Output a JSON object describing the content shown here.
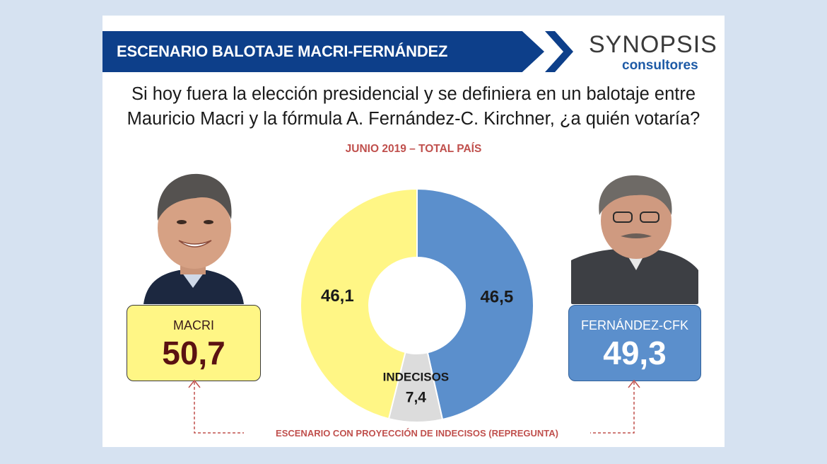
{
  "header": {
    "title": "ESCENARIO BALOTAJE MACRI-FERNÁNDEZ",
    "logo_main": "SYNOPSIS",
    "logo_sub": "consultores",
    "banner_color": "#0d3f8a"
  },
  "question": {
    "line1": "Si hoy fuera la elección presidencial y se definiera en un balotaje entre",
    "line2": "Mauricio Macri y la fórmula A. Fernández-C. Kirchner, ¿a quién votaría?"
  },
  "subtitle": "JUNIO 2019 – TOTAL PAÍS",
  "candidates": {
    "left": {
      "name": "MACRI",
      "value": "50,7",
      "color": "#fff685"
    },
    "right": {
      "name": "FERNÁNDEZ-CFK",
      "value": "49,3",
      "color": "#5b8fcc"
    }
  },
  "footnote": "ESCENARIO CON PROYECCIÓN DE INDECISOS (REPREGUNTA)",
  "chart_data": {
    "type": "pie",
    "donut": true,
    "slices": [
      {
        "label": "FERNÁNDEZ-CFK",
        "value": 46.5,
        "display": "46,5",
        "color": "#5b8fcc"
      },
      {
        "label": "INDECISOS",
        "value": 7.4,
        "display": "7,4",
        "color": "#dcdcdc"
      },
      {
        "label": "MACRI",
        "value": 46.1,
        "display": "46,1",
        "color": "#fff685"
      }
    ],
    "indecisos_label": "INDECISOS",
    "start_angle_deg": 0
  }
}
